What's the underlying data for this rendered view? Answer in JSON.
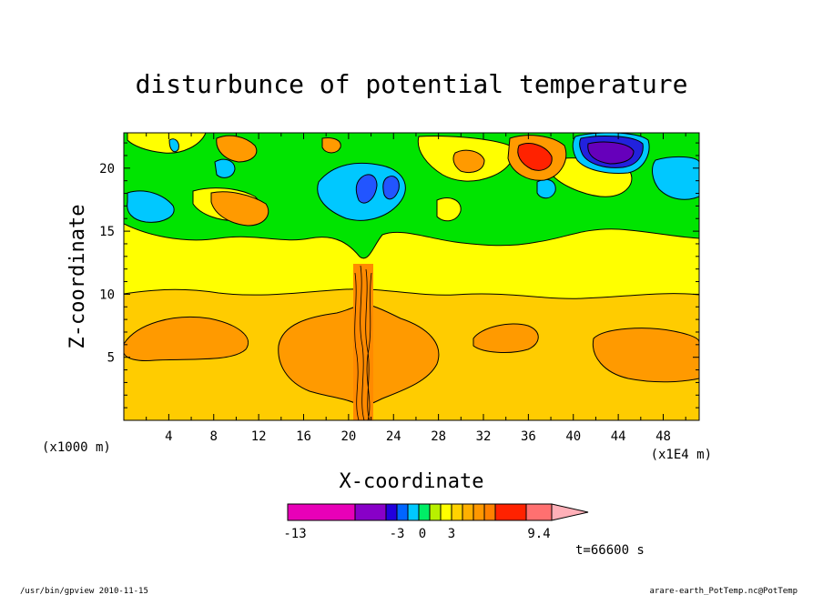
{
  "chart_data": {
    "type": "heatmap",
    "title": "disturbunce of potential temperature",
    "xlabel": "X-coordinate",
    "ylabel": "Z-coordinate",
    "x_unit_left": "(x1000 m)",
    "x_unit_right": "(x1E4 m)",
    "xlim": [
      0,
      51.2
    ],
    "ylim": [
      0,
      22.8
    ],
    "x_ticks": [
      "4",
      "8",
      "12",
      "16",
      "20",
      "24",
      "28",
      "32",
      "36",
      "40",
      "44",
      "48"
    ],
    "y_ticks": [
      "5",
      "10",
      "15",
      "20"
    ],
    "colorbar": {
      "tick_labels": [
        "-13",
        "-3",
        "0",
        "3",
        "9.4"
      ],
      "levels": [
        -13,
        -6,
        -3,
        -2.5,
        -2,
        -1.5,
        -1,
        -0.5,
        0,
        0.5,
        1,
        1.5,
        2,
        2.5,
        3,
        6,
        9.4
      ],
      "colors": [
        "#e800b8",
        "#8800c8",
        "#2200dd",
        "#0066ff",
        "#00c8ff",
        "#00ee66",
        "#b8f000",
        "#ffff00",
        "#ffd200",
        "#ffb000",
        "#ff9800",
        "#ff8000",
        "#ff2200",
        "#ff7070",
        "#ffb0b8"
      ]
    },
    "layers": [
      {
        "band": "0 to 0.5",
        "z_range": [
          0,
          9.8
        ],
        "color": "#ffcc00"
      },
      {
        "band": "0.5 to 1",
        "z_range": [
          1.5,
          7.5
        ],
        "color": "#ff9a00",
        "note": "warm lobes"
      },
      {
        "band": "-0.5 to 0",
        "z_range": [
          9.8,
          14.5
        ],
        "color": "#ffff00"
      },
      {
        "band": "-1 to -0.5",
        "z_range": [
          14.5,
          22.8
        ],
        "color": "#00e400"
      },
      {
        "band": "-3 to -2",
        "x": 41,
        "z": 21.2,
        "color": "#6600bb",
        "note": "cold extreme"
      },
      {
        "band": "6 to 9.4",
        "x": 36,
        "z": 20.6,
        "color": "#ff2200",
        "note": "warm extreme"
      }
    ],
    "time_label": "t=66600 s"
  },
  "footer": {
    "left": "/usr/bin/gpview  2010-11-15",
    "right": "arare-earth_PotTemp.nc@PotTemp"
  }
}
